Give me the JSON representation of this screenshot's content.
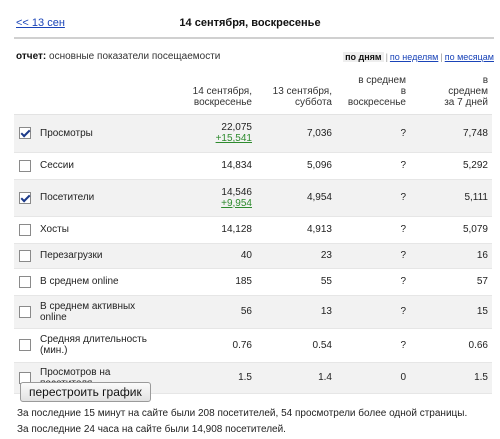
{
  "nav": {
    "prev_link": "<< 13 сен",
    "title": "14 сентября, воскресенье"
  },
  "report": {
    "label": "отчет:",
    "name": "основные показатели посещаемости"
  },
  "period": {
    "by_days": "по дням",
    "by_weeks": "по неделям",
    "by_months": "по месяцам",
    "separator": "|"
  },
  "columns": {
    "c1": [
      "14 сентября,",
      "воскресенье"
    ],
    "c2": [
      "13 сентября,",
      "суббота"
    ],
    "c3": [
      "в среднем",
      "в",
      "воскресенье"
    ],
    "c4": [
      "в",
      "среднем",
      "за 7 дней"
    ]
  },
  "rows": [
    {
      "checked": true,
      "name": [
        "Просмотры"
      ],
      "v1": "22,075",
      "delta": "+15,541",
      "v2": "7,036",
      "v3": "?",
      "v4": "7,748"
    },
    {
      "checked": false,
      "name": [
        "Сессии"
      ],
      "v1": "14,834",
      "delta": "",
      "v2": "5,096",
      "v3": "?",
      "v4": "5,292"
    },
    {
      "checked": true,
      "name": [
        "Посетители"
      ],
      "v1": "14,546",
      "delta": "+9,954",
      "v2": "4,954",
      "v3": "?",
      "v4": "5,111"
    },
    {
      "checked": false,
      "name": [
        "Хосты"
      ],
      "v1": "14,128",
      "delta": "",
      "v2": "4,913",
      "v3": "?",
      "v4": "5,079"
    },
    {
      "checked": false,
      "name": [
        "Перезагрузки"
      ],
      "v1": "40",
      "delta": "",
      "v2": "23",
      "v3": "?",
      "v4": "16"
    },
    {
      "checked": false,
      "name": [
        "В среднем online"
      ],
      "v1": "185",
      "delta": "",
      "v2": "55",
      "v3": "?",
      "v4": "57"
    },
    {
      "checked": false,
      "name": [
        "В среднем активных",
        "online"
      ],
      "v1": "56",
      "delta": "",
      "v2": "13",
      "v3": "?",
      "v4": "15"
    },
    {
      "checked": false,
      "name": [
        "Средняя длительность",
        "(мин.)"
      ],
      "v1": "0.76",
      "delta": "",
      "v2": "0.54",
      "v3": "?",
      "v4": "0.66"
    },
    {
      "checked": false,
      "name": [
        "Просмотров на",
        "посетителя"
      ],
      "v1": "1.5",
      "delta": "",
      "v2": "1.4",
      "v3": "0",
      "v4": "1.5"
    }
  ],
  "button": {
    "rebuild": "перестроить график"
  },
  "footer": {
    "line1": "За последние 15 минут на сайте были 208 посетителей, 54 просмотрели более одной страницы.",
    "line2": "За последние 24 часа на сайте были 14,908 посетителей."
  },
  "colors": {
    "link": "#1a44b8",
    "positive_delta": "#2e8b2e",
    "row_shade": "#f2f2f2"
  }
}
